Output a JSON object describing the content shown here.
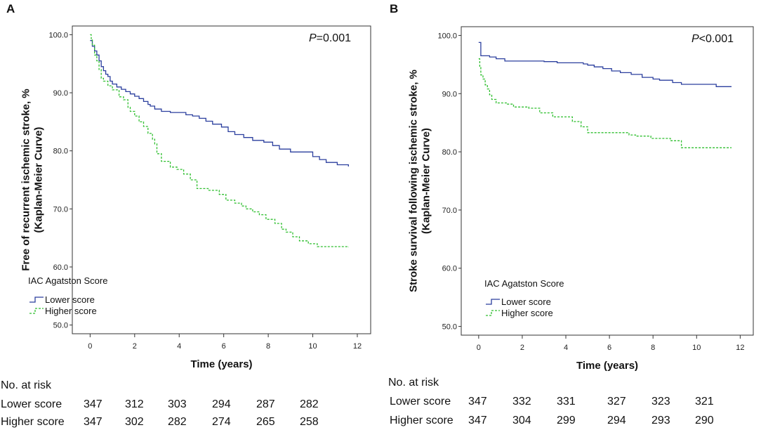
{
  "panels": [
    {
      "label": "A",
      "p_value_prefix": "P",
      "p_value_rest": "=0.001",
      "at_risk_title": "No. at risk",
      "at_risk_rows": [
        {
          "name": "Lower score",
          "counts": [
            "347",
            "312",
            "303",
            "294",
            "287",
            "282"
          ]
        },
        {
          "name": "Higher score",
          "counts": [
            "347",
            "302",
            "282",
            "274",
            "265",
            "258"
          ]
        }
      ]
    },
    {
      "label": "B",
      "p_value_prefix": "P",
      "p_value_rest": "<0.001",
      "at_risk_title": "No. at risk",
      "at_risk_rows": [
        {
          "name": "Lower score",
          "counts": [
            "347",
            "332",
            "331",
            "327",
            "323",
            "321"
          ]
        },
        {
          "name": "Higher score",
          "counts": [
            "347",
            "304",
            "299",
            "294",
            "293",
            "290"
          ]
        }
      ]
    }
  ],
  "colors": {
    "lower": "#2b3f9e",
    "higher": "#2fbf2f",
    "axis": "#333333"
  },
  "chart_data": [
    {
      "type": "line",
      "subtype": "kaplan-meier step",
      "title": "",
      "xlabel": "Time (years)",
      "ylabel": "Free of recurrent ischemic stroke, % (Kaplan-Meier Curve)",
      "xlim": [
        -0.8,
        12.6
      ],
      "ylim": [
        48.5,
        101.5
      ],
      "xticks": [
        0,
        2,
        4,
        6,
        8,
        10,
        12
      ],
      "yticks": [
        50.0,
        60.0,
        70.0,
        80.0,
        90.0,
        100.0
      ],
      "legend_title": "IAC Agatston Score",
      "grid": false,
      "series": [
        {
          "name": "Lower score",
          "style": "solid",
          "color": "#2b3f9e",
          "x": [
            0,
            0.1,
            0.2,
            0.3,
            0.4,
            0.5,
            0.6,
            0.7,
            0.8,
            0.9,
            1.0,
            1.2,
            1.4,
            1.6,
            1.8,
            2.0,
            2.2,
            2.4,
            2.6,
            2.7,
            2.9,
            3.2,
            3.6,
            3.9,
            4.3,
            4.6,
            4.9,
            5.2,
            5.5,
            5.9,
            6.2,
            6.5,
            6.9,
            7.3,
            7.8,
            8.2,
            8.5,
            9.0,
            9.6,
            10.0,
            10.3,
            10.6,
            11.1,
            11.6
          ],
          "y": [
            99.0,
            98.0,
            97.2,
            96.5,
            95.5,
            94.5,
            93.8,
            93.2,
            92.8,
            92.0,
            91.5,
            91.0,
            90.6,
            90.2,
            89.8,
            89.4,
            89.0,
            88.5,
            88.0,
            87.7,
            87.2,
            86.8,
            86.6,
            86.6,
            86.2,
            86.0,
            85.6,
            85.1,
            84.6,
            84.1,
            83.3,
            82.8,
            82.3,
            81.8,
            81.5,
            80.9,
            80.3,
            79.8,
            79.8,
            79.0,
            78.5,
            78.0,
            77.6,
            77.3
          ]
        },
        {
          "name": "Higher score",
          "style": "dashed",
          "color": "#2fbf2f",
          "x": [
            0,
            0.05,
            0.1,
            0.2,
            0.3,
            0.4,
            0.5,
            0.6,
            0.8,
            1.0,
            1.3,
            1.5,
            1.7,
            1.8,
            2.0,
            2.2,
            2.4,
            2.6,
            2.8,
            2.9,
            3.0,
            3.2,
            3.6,
            3.9,
            4.2,
            4.5,
            4.8,
            5.3,
            5.8,
            6.1,
            6.5,
            6.8,
            7.0,
            7.3,
            7.6,
            7.9,
            8.3,
            8.6,
            8.8,
            9.1,
            9.4,
            9.8,
            10.2,
            11.6
          ],
          "y": [
            100.0,
            99.2,
            98.2,
            96.5,
            95.5,
            94.0,
            92.5,
            92.0,
            91.2,
            90.5,
            89.3,
            88.8,
            87.5,
            86.8,
            86.0,
            85.0,
            84.2,
            83.0,
            82.0,
            81.2,
            79.5,
            78.2,
            77.2,
            76.8,
            76.0,
            75.0,
            73.5,
            73.2,
            72.5,
            71.5,
            71.0,
            70.5,
            70.0,
            69.5,
            69.0,
            68.2,
            67.5,
            66.5,
            66.0,
            65.2,
            64.5,
            64.0,
            63.5,
            63.4
          ]
        }
      ]
    },
    {
      "type": "line",
      "subtype": "kaplan-meier step",
      "title": "",
      "xlabel": "Time (years)",
      "ylabel": "Stroke survival following ischemic stroke, % (Kaplan-Meier Curve)",
      "xlim": [
        -0.8,
        12.6
      ],
      "ylim": [
        48.5,
        101.5
      ],
      "xticks": [
        0,
        2,
        4,
        6,
        8,
        10,
        12
      ],
      "yticks": [
        50.0,
        60.0,
        70.0,
        80.0,
        90.0,
        100.0
      ],
      "legend_title": "IAC Agatston Score",
      "grid": false,
      "series": [
        {
          "name": "Lower score",
          "style": "solid",
          "color": "#2b3f9e",
          "x": [
            0,
            0.1,
            0.5,
            0.8,
            1.2,
            2.0,
            3.0,
            3.6,
            4.2,
            4.8,
            5.0,
            5.3,
            5.7,
            6.1,
            6.5,
            7.0,
            7.5,
            8.0,
            8.3,
            8.9,
            9.3,
            10.3,
            10.9,
            11.6
          ],
          "y": [
            98.8,
            96.5,
            96.3,
            96.0,
            95.6,
            95.6,
            95.5,
            95.3,
            95.3,
            95.1,
            94.9,
            94.6,
            94.3,
            93.9,
            93.6,
            93.3,
            92.8,
            92.5,
            92.3,
            91.9,
            91.6,
            91.6,
            91.2,
            91.2
          ]
        },
        {
          "name": "Higher score",
          "style": "dashed",
          "color": "#2fbf2f",
          "x": [
            0,
            0.05,
            0.1,
            0.2,
            0.3,
            0.4,
            0.5,
            0.6,
            0.8,
            1.3,
            1.6,
            2.3,
            2.8,
            3.4,
            3.9,
            4.3,
            4.7,
            5.0,
            6.0,
            6.9,
            7.2,
            7.9,
            8.8,
            9.3,
            11.6
          ],
          "y": [
            96.0,
            94.5,
            93.2,
            92.5,
            91.5,
            90.8,
            89.8,
            89.0,
            88.4,
            88.2,
            87.7,
            87.5,
            86.7,
            86.0,
            86.0,
            85.2,
            84.3,
            83.3,
            83.3,
            82.9,
            82.7,
            82.3,
            81.9,
            80.7,
            80.7
          ]
        }
      ]
    }
  ]
}
